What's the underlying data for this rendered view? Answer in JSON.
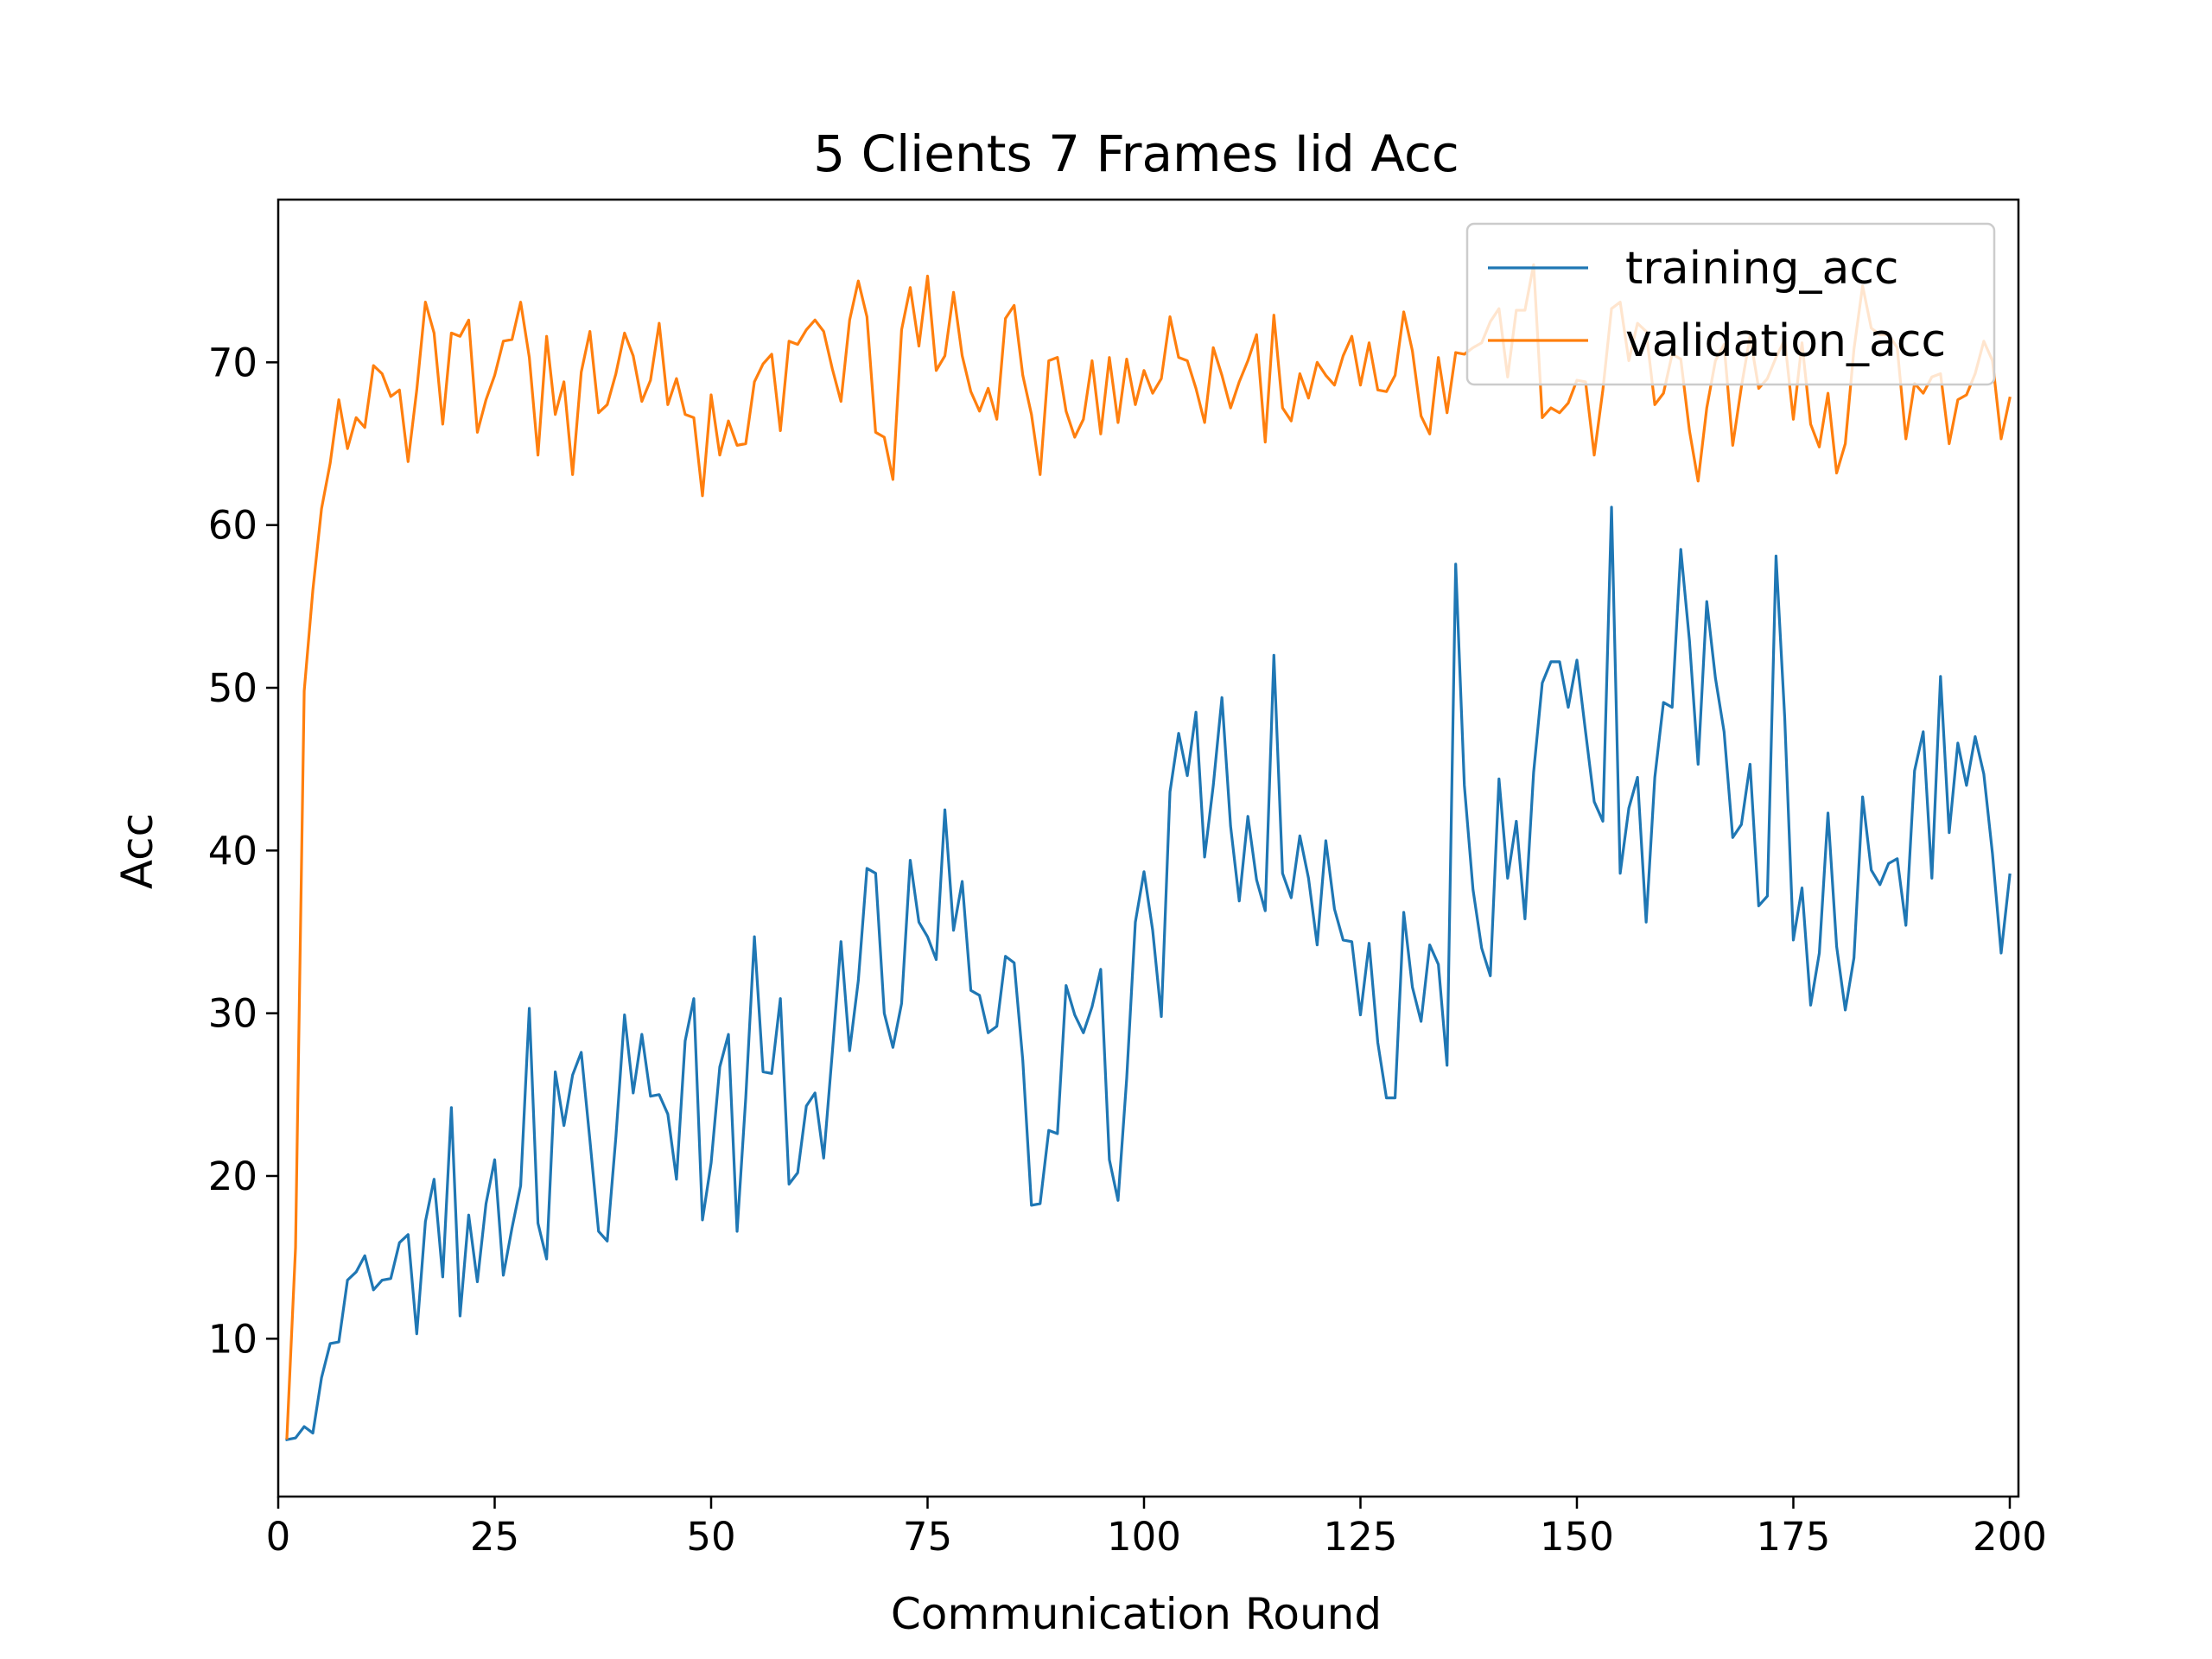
{
  "chart_data": {
    "type": "line",
    "title": "5 Clients 7 Frames Iid Acc",
    "xlabel": "Communication Round",
    "ylabel": "Acc",
    "xlim": [
      0,
      201
    ],
    "ylim": [
      0.3,
      80
    ],
    "xticks": [
      "0",
      "25",
      "50",
      "75",
      "100",
      "125",
      "150",
      "175",
      "200"
    ],
    "xtick_values": [
      0,
      25,
      50,
      75,
      100,
      125,
      150,
      175,
      200
    ],
    "yticks": [
      "10",
      "20",
      "30",
      "40",
      "50",
      "60",
      "70"
    ],
    "ytick_values": [
      10,
      20,
      30,
      40,
      50,
      60,
      70
    ],
    "grid": false,
    "legend_position": "top-right",
    "series": [
      {
        "name": "training_acc",
        "color": "#1f77b4",
        "x_start": 1,
        "values": [
          3.8,
          3.9,
          4.6,
          4.2,
          7.6,
          9.7,
          9.8,
          13.6,
          14.1,
          15.1,
          13.0,
          13.6,
          13.7,
          15.9,
          16.4,
          10.3,
          17.2,
          19.8,
          13.8,
          24.2,
          11.4,
          17.6,
          13.5,
          18.3,
          21.0,
          13.9,
          16.8,
          19.4,
          30.3,
          17.1,
          14.9,
          26.4,
          23.1,
          26.2,
          27.6,
          22.2,
          16.6,
          16.0,
          22.4,
          29.9,
          25.1,
          28.7,
          24.9,
          25.0,
          23.8,
          19.8,
          28.3,
          30.9,
          17.3,
          20.8,
          26.7,
          28.7,
          16.6,
          24.8,
          34.7,
          26.4,
          26.3,
          30.9,
          19.5,
          20.2,
          24.3,
          25.1,
          21.1,
          27.6,
          34.4,
          27.7,
          32.0,
          38.9,
          38.6,
          30.0,
          27.9,
          30.6,
          39.4,
          35.6,
          34.7,
          33.3,
          42.5,
          35.1,
          38.1,
          31.4,
          31.1,
          28.8,
          29.2,
          33.5,
          33.1,
          27.1,
          18.2,
          18.3,
          22.8,
          22.6,
          31.7,
          29.9,
          28.8,
          30.4,
          32.7,
          21.0,
          18.5,
          26.0,
          35.6,
          38.7,
          35.1,
          29.8,
          43.6,
          47.2,
          44.6,
          48.5,
          39.6,
          44.0,
          49.4,
          41.5,
          36.9,
          42.1,
          38.2,
          36.3,
          52.0,
          38.6,
          37.1,
          40.9,
          38.3,
          34.2,
          40.6,
          36.4,
          34.5,
          34.4,
          29.9,
          34.3,
          28.2,
          24.8,
          24.8,
          36.2,
          31.6,
          29.5,
          34.2,
          33.0,
          26.8,
          57.6,
          44.0,
          37.6,
          34.0,
          32.3,
          44.4,
          38.3,
          41.8,
          35.8,
          44.8,
          50.3,
          51.6,
          51.6,
          48.8,
          51.7,
          47.3,
          43.0,
          41.8,
          61.1,
          38.6,
          42.6,
          44.5,
          35.6,
          44.5,
          49.1,
          48.8,
          58.5,
          52.9,
          45.3,
          55.3,
          50.6,
          47.3,
          40.8,
          41.6,
          45.3,
          36.6,
          37.2,
          58.1,
          48.2,
          34.5,
          37.7,
          30.5,
          33.7,
          42.3,
          34.1,
          30.2,
          33.4,
          43.3,
          38.8,
          37.9,
          39.2,
          39.5,
          35.4,
          44.9,
          47.3,
          38.3,
          50.7,
          41.1,
          46.6,
          44.0,
          47.0,
          44.7,
          39.8,
          33.7,
          38.5
        ]
      },
      {
        "name": "validation_acc",
        "color": "#ff7f0e",
        "x_start": 1,
        "values": [
          3.9,
          15.6,
          49.8,
          56.0,
          61.0,
          63.8,
          67.7,
          64.7,
          66.6,
          66.0,
          69.8,
          69.3,
          67.9,
          68.3,
          63.9,
          68.3,
          73.7,
          71.8,
          66.2,
          71.8,
          71.6,
          72.6,
          65.7,
          67.7,
          69.2,
          71.3,
          71.4,
          73.7,
          70.3,
          64.3,
          71.6,
          66.8,
          68.8,
          63.1,
          69.4,
          71.9,
          66.9,
          67.4,
          69.3,
          71.8,
          70.4,
          67.6,
          68.9,
          72.4,
          67.4,
          69.0,
          66.8,
          66.6,
          61.8,
          68.0,
          64.3,
          66.4,
          64.9,
          65.0,
          68.8,
          69.9,
          70.5,
          65.8,
          71.3,
          71.1,
          72.0,
          72.6,
          71.9,
          69.6,
          67.6,
          72.6,
          75.0,
          72.8,
          65.7,
          65.4,
          62.8,
          72.0,
          74.6,
          71.0,
          75.3,
          69.5,
          70.4,
          74.3,
          70.4,
          68.2,
          67.0,
          68.4,
          66.5,
          72.7,
          73.5,
          69.2,
          66.8,
          63.1,
          70.1,
          70.3,
          67.0,
          65.4,
          66.5,
          70.1,
          65.6,
          70.3,
          66.3,
          70.2,
          67.4,
          69.5,
          68.1,
          69.0,
          72.8,
          70.3,
          70.1,
          68.4,
          66.3,
          70.9,
          69.2,
          67.2,
          68.8,
          70.1,
          71.7,
          65.1,
          72.9,
          67.2,
          66.4,
          69.3,
          67.8,
          70.0,
          69.2,
          68.6,
          70.4,
          71.6,
          68.6,
          71.2,
          68.3,
          68.2,
          69.2,
          73.1,
          70.7,
          66.7,
          65.6,
          70.3,
          66.9,
          70.6,
          70.5,
          70.9,
          71.2,
          72.5,
          73.3,
          69.1,
          73.2,
          73.2,
          76.0,
          66.6,
          67.2,
          66.9,
          67.5,
          68.9,
          68.8,
          64.3,
          68.3,
          73.3,
          73.7,
          70.1,
          72.4,
          71.9,
          67.4,
          68.1,
          70.5,
          70.2,
          65.8,
          62.7,
          67.2,
          70.1,
          71.1,
          64.9,
          68.5,
          71.6,
          68.4,
          69.0,
          70.3,
          71.4,
          66.5,
          71.2,
          66.2,
          64.8,
          68.1,
          63.2,
          65.0,
          70.8,
          74.7,
          72.1,
          71.7,
          71.7,
          70.9,
          65.3,
          68.7,
          68.1,
          69.1,
          69.3,
          65.0,
          67.7,
          68.0,
          69.3,
          71.3,
          70.1,
          65.3,
          67.8
        ]
      }
    ]
  }
}
